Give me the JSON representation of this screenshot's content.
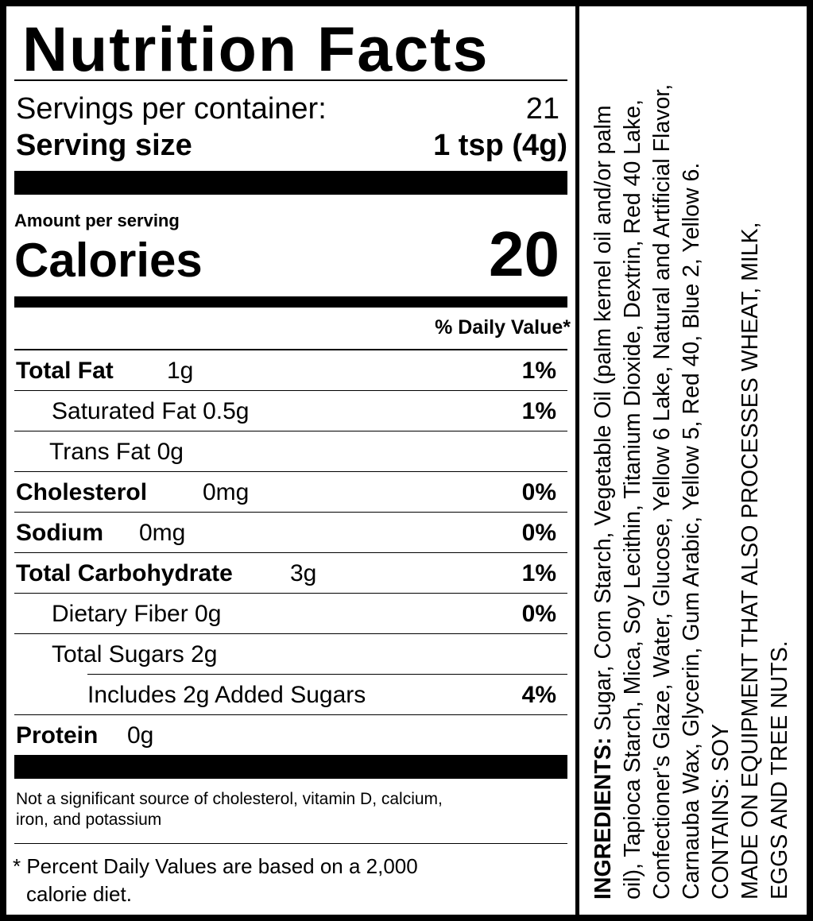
{
  "title": "Nutrition Facts",
  "servings_per_container_label": "Servings per container:",
  "servings_per_container": "21",
  "serving_size_label": "Serving size",
  "serving_size": "1 tsp (4g)",
  "amount_per_serving": "Amount per serving",
  "calories_label": "Calories",
  "calories": "20",
  "daily_value_header": "% Daily Value*",
  "nutrients": [
    {
      "name": "Total Fat",
      "amount": "1g",
      "dv": "1%"
    },
    {
      "name": "Saturated Fat 0.5g",
      "amount": "",
      "dv": "1%"
    },
    {
      "name": "Trans Fat 0g",
      "amount": "",
      "dv": ""
    },
    {
      "name": "Cholesterol",
      "amount": "0mg",
      "dv": "0%"
    },
    {
      "name": "Sodium",
      "amount": "0mg",
      "dv": "0%"
    },
    {
      "name": "Total Carbohydrate",
      "amount": "3g",
      "dv": "1%"
    },
    {
      "name": "Dietary Fiber 0g",
      "amount": "",
      "dv": "0%"
    },
    {
      "name": "Total Sugars 2g",
      "amount": "",
      "dv": ""
    },
    {
      "name": "Includes 2g Added Sugars",
      "amount": "",
      "dv": "4%"
    },
    {
      "name": "Protein",
      "amount": "0g",
      "dv": ""
    }
  ],
  "not_significant_line1": "Not a significant source of cholesterol, vitamin D, calcium,",
  "not_significant_line2": "iron, and potassium",
  "footnote_line1": "* Percent Daily Values are based on a 2,000",
  "footnote_line2": "calorie diet.",
  "ingredients": {
    "label": "INGREDIENTS:",
    "lines": [
      " Sugar, Corn Starch, Vegetable Oil (palm kernel oil and/or palm",
      "oil), Tapioca Starch, Mica, Soy Lecithin, Titanium Dioxide, Dextrin, Red 40 Lake,",
      "Confectioner's Glaze, Water, Glucose, Yellow 6 Lake, Natural and Artificial Flavor,",
      "Carnauba Wax, Glycerin, Gum Arabic, Yellow 5, Red 40, Blue 2, Yellow 6."
    ],
    "contains": "CONTAINS: SOY",
    "equipment_line1": "MADE ON EQUIPMENT THAT ALSO PROCESSES WHEAT, MILK,",
    "equipment_line2": "EGGS AND TREE NUTS."
  }
}
